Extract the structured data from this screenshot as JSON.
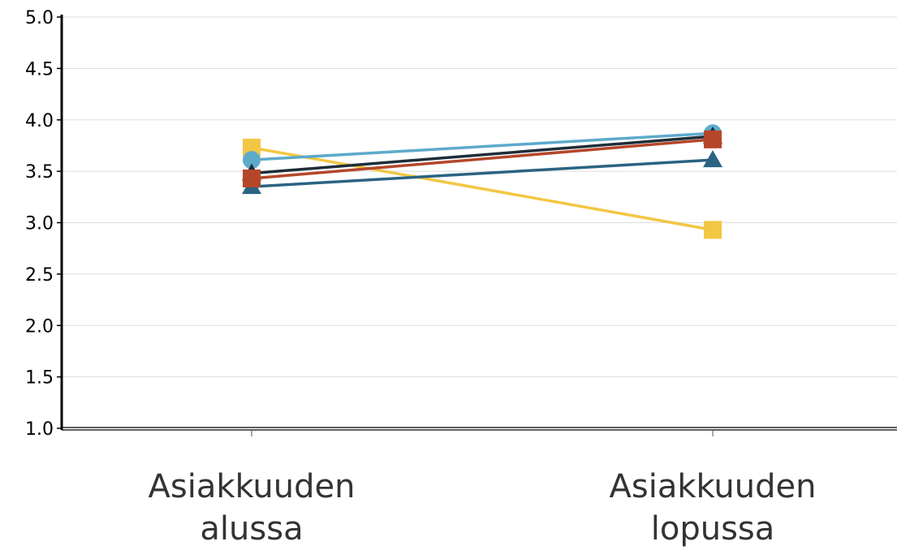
{
  "chart_data": {
    "type": "line",
    "title": "",
    "xlabel": "",
    "ylabel": "",
    "ylim": [
      1.0,
      5.0
    ],
    "y_ticks": [
      "1.0",
      "1.5",
      "2.0",
      "2.5",
      "3.0",
      "3.5",
      "4.0",
      "4.5",
      "5.0"
    ],
    "categories": [
      [
        "Asiakkuuden",
        "alussa"
      ],
      [
        "Asiakkuuden",
        "lopussa"
      ]
    ],
    "grid": true,
    "legend": "none",
    "series": [
      {
        "values": [
          3.73,
          2.93
        ],
        "color": "#f2c744",
        "marker": "square"
      },
      {
        "values": [
          3.61,
          3.87
        ],
        "color": "#5eaacb",
        "marker": "circle"
      },
      {
        "values": [
          3.35,
          3.61
        ],
        "color": "#2b6383",
        "marker": "triangle"
      },
      {
        "values": [
          3.48,
          3.84
        ],
        "color": "#1e2d38",
        "marker": "triangle"
      },
      {
        "values": [
          3.43,
          3.81
        ],
        "color": "#b4472a",
        "marker": "square"
      }
    ]
  }
}
